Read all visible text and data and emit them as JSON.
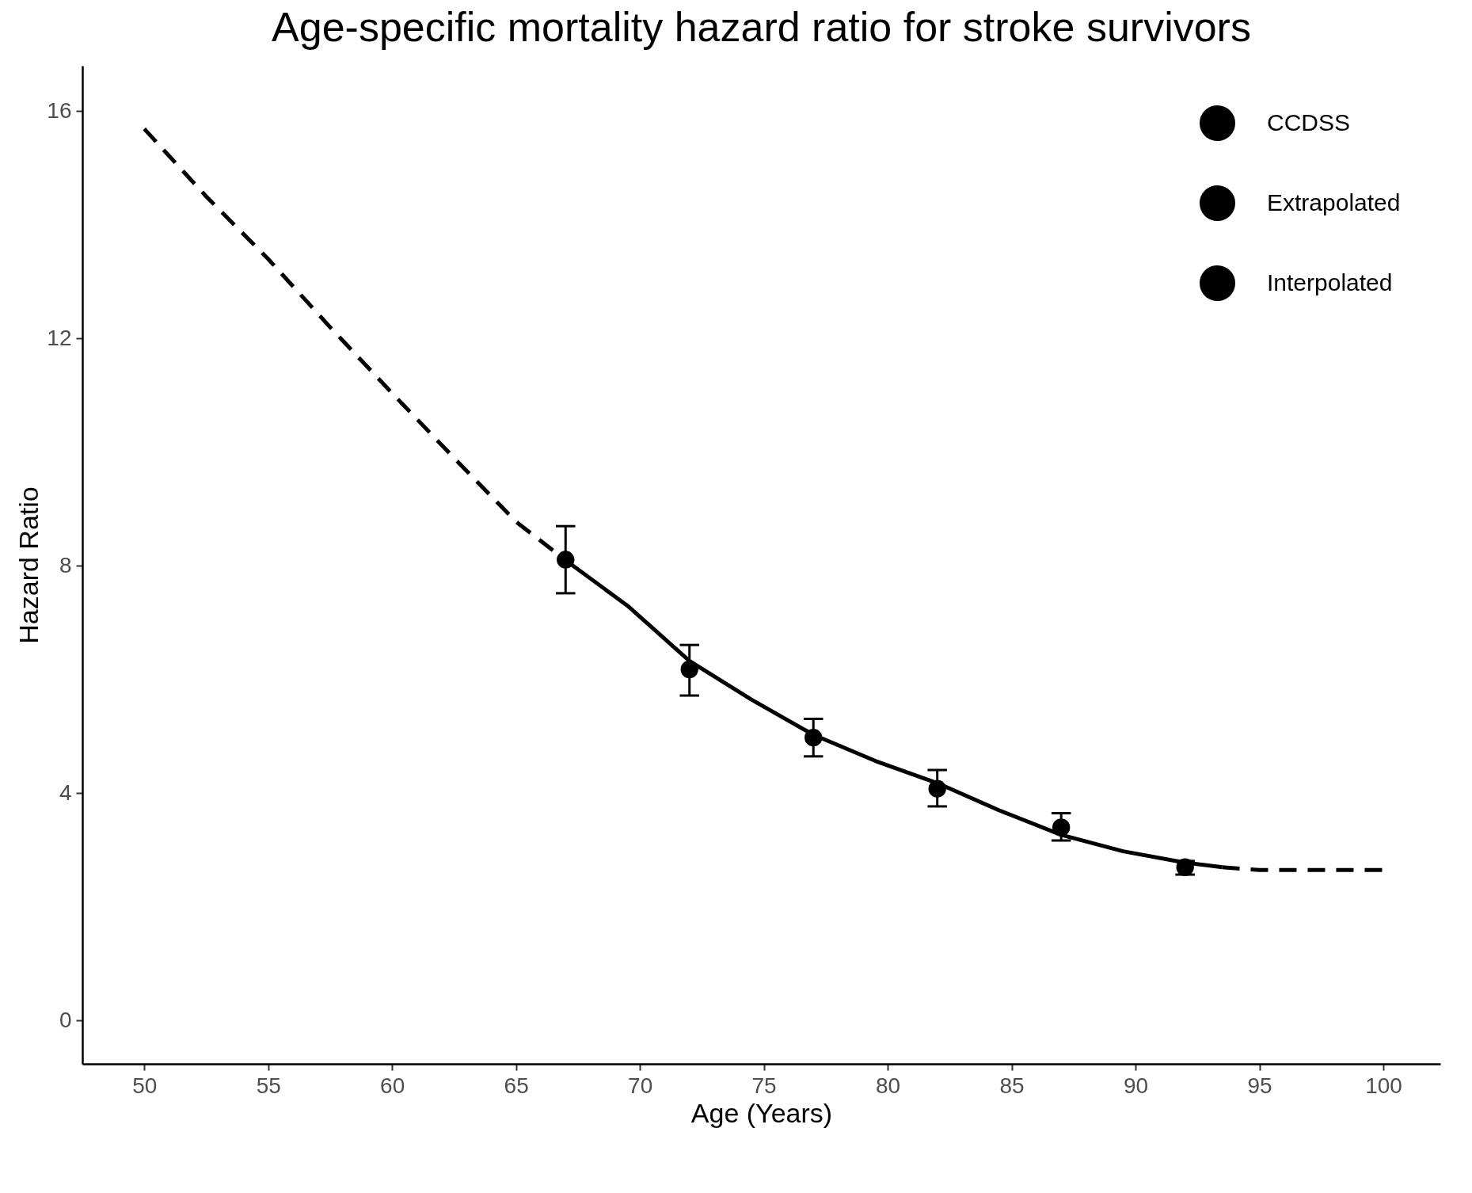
{
  "chart_data": {
    "type": "line",
    "title": "Age-specific mortality hazard ratio for stroke survivors",
    "xlabel": "Age (Years)",
    "ylabel": "Hazard Ratio",
    "xlim": [
      47.5,
      102.3
    ],
    "xticks": [
      50,
      55,
      60,
      65,
      70,
      75,
      80,
      85,
      90,
      95,
      100
    ],
    "ylim": [
      -0.76,
      16.8
    ],
    "yticks": [
      0,
      4,
      8,
      12,
      16
    ],
    "grid": false,
    "legend": "top right",
    "series": [
      {
        "name": "CCDSS",
        "type": "scatter",
        "marker": "circle",
        "color": "#000000",
        "x": [
          67,
          72,
          77,
          82,
          87,
          92
        ],
        "values": [
          8.11,
          6.18,
          4.98,
          4.08,
          3.4,
          2.7
        ],
        "errors": [
          [
            7.52,
            8.7
          ],
          [
            5.72,
            6.61
          ],
          [
            4.65,
            5.31
          ],
          [
            3.77,
            4.41
          ],
          [
            3.17,
            3.65
          ],
          [
            2.57,
            2.81
          ]
        ]
      },
      {
        "name": "Extrapolated",
        "type": "line",
        "line_style": "dashed",
        "color": "#000000",
        "x": [
          50,
          52.5,
          55,
          57.5,
          60,
          62.5,
          65,
          67,
          80,
          93.5,
          95,
          97.5,
          100
        ],
        "values": [
          15.69,
          14.5,
          13.4,
          12.2,
          11.04,
          9.9,
          8.78,
          8.1,
          null,
          2.7,
          2.65,
          2.65,
          2.65
        ]
      },
      {
        "name": "Interpolated",
        "type": "line",
        "line_style": "solid",
        "color": "#000000",
        "x": [
          67,
          69.5,
          72,
          74.5,
          77,
          79.5,
          82,
          84.5,
          87,
          89.5,
          92,
          93.5
        ],
        "values": [
          8.1,
          7.3,
          6.33,
          5.65,
          5.03,
          4.57,
          4.18,
          3.7,
          3.27,
          2.98,
          2.78,
          2.7
        ]
      }
    ]
  }
}
